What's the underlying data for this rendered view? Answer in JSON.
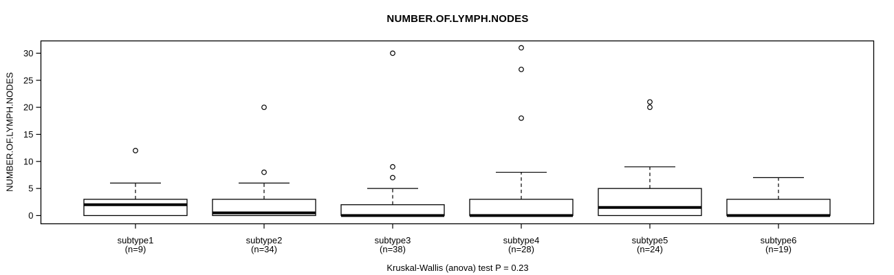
{
  "page": {
    "title": "NUMBER.OF.LYMPH.NODES",
    "y_axis_label": "NUMBER.OF.LYMPH.NODES",
    "annotation": "Kruskal-Wallis (anova) test P = 0.23"
  },
  "chart_data": {
    "type": "boxplot",
    "title": "NUMBER.OF.LYMPH.NODES",
    "xlabel": "",
    "ylabel": "NUMBER.OF.LYMPH.NODES",
    "annotation": "Kruskal-Wallis (anova) test P = 0.23",
    "ylim": [
      -1.6,
      32.4
    ],
    "yticks": [
      0,
      5,
      10,
      15,
      20,
      25,
      30
    ],
    "grid": false,
    "legend": false,
    "categories": [
      "subtype1",
      "subtype2",
      "subtype3",
      "subtype4",
      "subtype5",
      "subtype6"
    ],
    "sample_sizes": [
      9,
      34,
      38,
      28,
      24,
      19
    ],
    "boxes": [
      {
        "label": "subtype1",
        "n_label": "(n=9)",
        "n": 9,
        "whisker_low": 0,
        "q1": 0,
        "median": 2,
        "q3": 3,
        "whisker_high": 6,
        "outliers": [
          12
        ]
      },
      {
        "label": "subtype2",
        "n_label": "(n=34)",
        "n": 34,
        "whisker_low": 0,
        "q1": 0,
        "median": 0.5,
        "q3": 3,
        "whisker_high": 6,
        "outliers": [
          8,
          20
        ]
      },
      {
        "label": "subtype3",
        "n_label": "(n=38)",
        "n": 38,
        "whisker_low": 0,
        "q1": 0,
        "median": 0,
        "q3": 2,
        "whisker_high": 5,
        "outliers": [
          7,
          9,
          30
        ]
      },
      {
        "label": "subtype4",
        "n_label": "(n=28)",
        "n": 28,
        "whisker_low": 0,
        "q1": 0,
        "median": 0,
        "q3": 3,
        "whisker_high": 8,
        "outliers": [
          18,
          27,
          31
        ]
      },
      {
        "label": "subtype5",
        "n_label": "(n=24)",
        "n": 24,
        "whisker_low": 0,
        "q1": 0,
        "median": 1.5,
        "q3": 5,
        "whisker_high": 9,
        "outliers": [
          20,
          21
        ]
      },
      {
        "label": "subtype6",
        "n_label": "(n=19)",
        "n": 19,
        "whisker_low": 0,
        "q1": 0,
        "median": 0,
        "q3": 3,
        "whisker_high": 7,
        "outliers": []
      }
    ],
    "colors": {
      "stroke": "#000000",
      "box_fill": "#ffffff",
      "background": "#ffffff"
    }
  }
}
